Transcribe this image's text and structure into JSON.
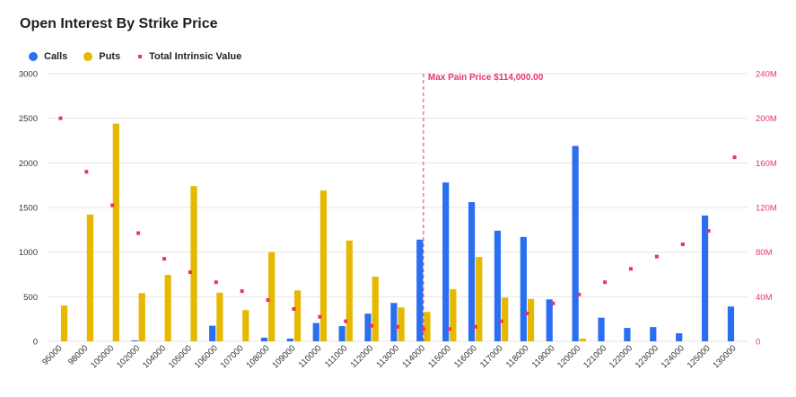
{
  "chart_data": {
    "type": "bar",
    "title": "Open Interest By Strike Price",
    "categories": [
      "95000",
      "98000",
      "100000",
      "102000",
      "104000",
      "105000",
      "106000",
      "107000",
      "108000",
      "109000",
      "110000",
      "111000",
      "112000",
      "113000",
      "114000",
      "115000",
      "116000",
      "117000",
      "118000",
      "119000",
      "120000",
      "121000",
      "122000",
      "123000",
      "124000",
      "125000",
      "130000"
    ],
    "series": [
      {
        "name": "Calls",
        "type": "bar",
        "axis": "left",
        "color": "#2a6ff0",
        "values": [
          0,
          0,
          0,
          10,
          0,
          0,
          175,
          0,
          40,
          30,
          205,
          170,
          310,
          430,
          1140,
          1780,
          1560,
          1240,
          1170,
          470,
          2190,
          265,
          150,
          160,
          90,
          1410,
          390
        ]
      },
      {
        "name": "Puts",
        "type": "bar",
        "axis": "left",
        "color": "#e6b800",
        "values": [
          400,
          1420,
          2440,
          540,
          745,
          1740,
          545,
          350,
          1000,
          570,
          1690,
          1130,
          725,
          380,
          330,
          585,
          945,
          490,
          475,
          0,
          30,
          0,
          0,
          0,
          0,
          0,
          0
        ]
      },
      {
        "name": "Total Intrinsic Value",
        "type": "scatter",
        "axis": "right",
        "color": "#e8336a",
        "values": [
          200,
          152,
          122,
          97,
          74,
          62,
          53,
          45,
          37,
          29,
          22,
          18,
          14,
          13,
          11,
          11,
          13,
          18,
          25,
          34,
          42,
          53,
          65,
          76,
          87,
          99,
          165
        ]
      }
    ],
    "yLeft": {
      "min": 0,
      "max": 3000,
      "ticks": [
        0,
        500,
        1000,
        1500,
        2000,
        2500,
        3000
      ]
    },
    "yRight": {
      "min": 0,
      "max": 240,
      "ticks": [
        0,
        40,
        80,
        120,
        160,
        200,
        240
      ],
      "tick_labels": [
        "0",
        "40M",
        "80M",
        "120M",
        "160M",
        "200M",
        "240M"
      ]
    },
    "annotation": {
      "label": "Max Pain Price $114,000.00",
      "category": "114000"
    },
    "legend_position": "top-left",
    "grid": true
  }
}
